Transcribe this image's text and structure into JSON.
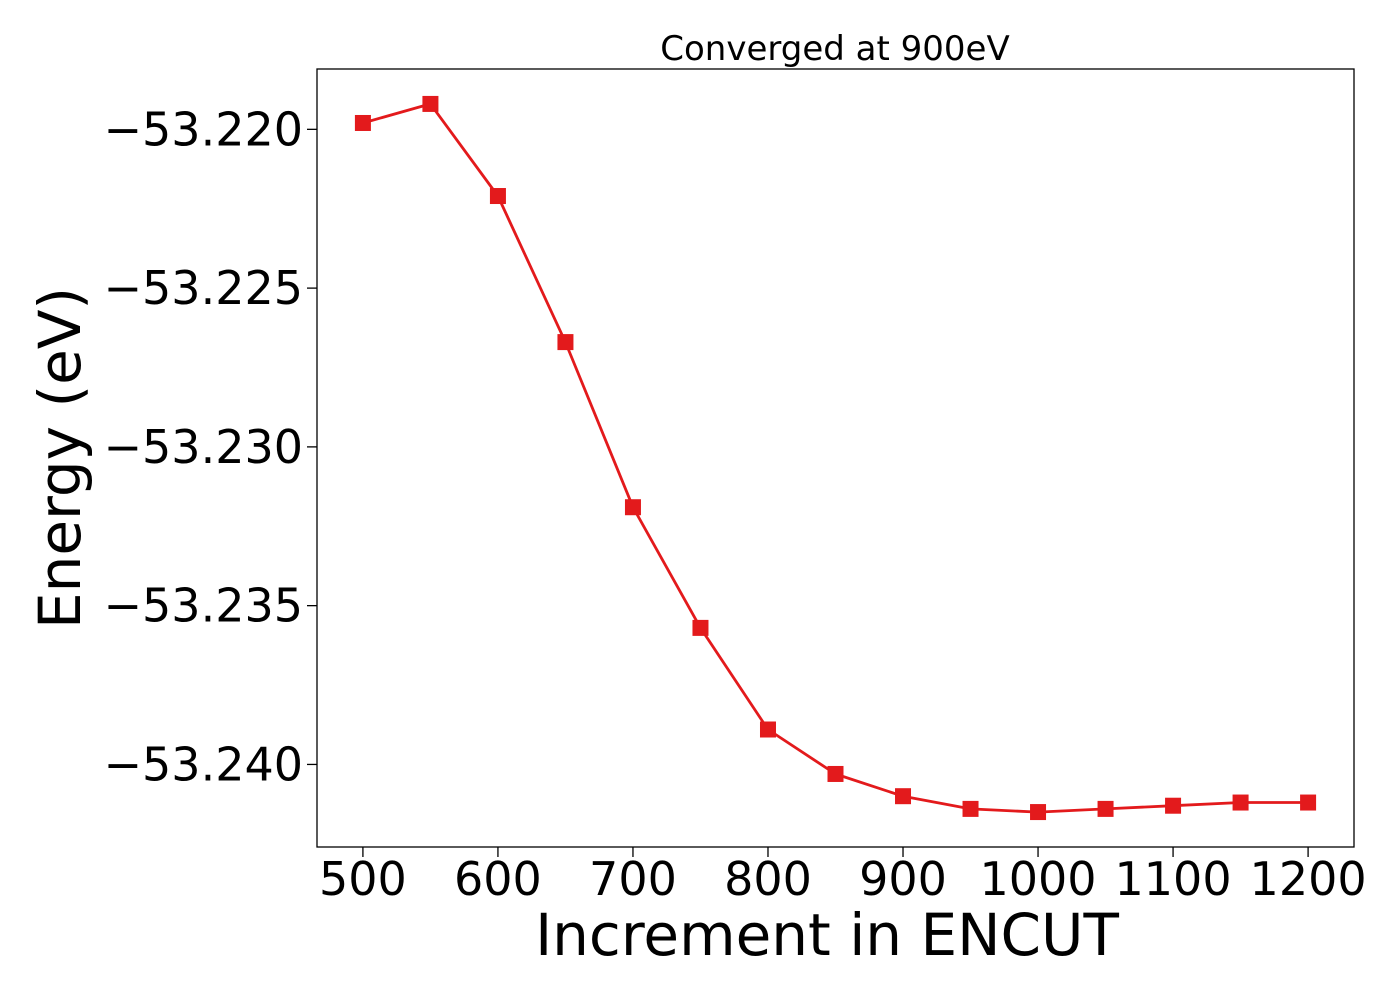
{
  "chart_data": {
    "type": "line",
    "title": "Converged at 900eV",
    "xlabel": "Increment in ENCUT",
    "ylabel": "Energy (eV)",
    "xlim": [
      466,
      1234
    ],
    "ylim": [
      -53.2426,
      -53.2181
    ],
    "x_ticks": [
      500,
      600,
      700,
      800,
      900,
      1000,
      1100,
      1200
    ],
    "x_tick_labels": [
      "500",
      "600",
      "700",
      "800",
      "900",
      "1000",
      "1100",
      "1200"
    ],
    "y_ticks": [
      -53.22,
      -53.225,
      -53.23,
      -53.235,
      -53.24
    ],
    "y_tick_labels": [
      "−53.220",
      "−53.225",
      "−53.230",
      "−53.235",
      "−53.240"
    ],
    "grid": false,
    "series": [
      {
        "color": "#e31a1c",
        "marker": "square",
        "x": [
          500,
          550,
          600,
          650,
          700,
          750,
          800,
          850,
          900,
          950,
          1000,
          1050,
          1100,
          1150,
          1200
        ],
        "y": [
          -53.2198,
          -53.2192,
          -53.2221,
          -53.2267,
          -53.2319,
          -53.2357,
          -53.2389,
          -53.2403,
          -53.241,
          -53.2414,
          -53.2415,
          -53.2414,
          -53.2413,
          -53.2412,
          -53.2412
        ]
      }
    ]
  }
}
